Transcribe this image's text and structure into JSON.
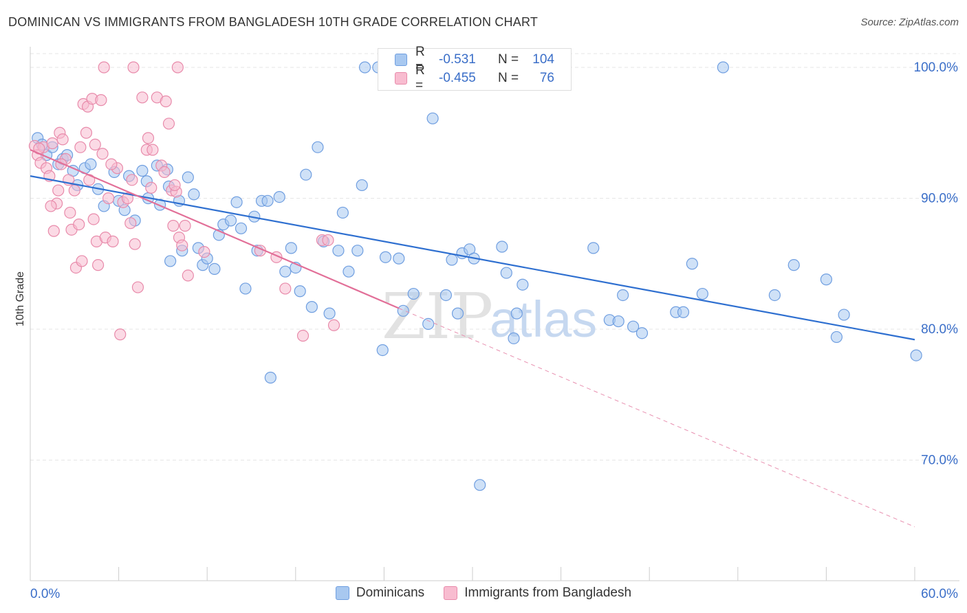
{
  "header": {
    "title": "DOMINICAN VS IMMIGRANTS FROM BANGLADESH 10TH GRADE CORRELATION CHART",
    "source": "Source: ZipAtlas.com"
  },
  "watermark": {
    "zip": "ZIP",
    "atlas": "atlas"
  },
  "legend_box": {
    "rows": [
      {
        "r_label": "R =",
        "r_value": "-0.531",
        "n_label": "N =",
        "n_value": "104",
        "color": "#a8c8f0",
        "border": "#6f9ee0"
      },
      {
        "r_label": "R =",
        "r_value": "-0.455",
        "n_label": "N =",
        "n_value": "76",
        "color": "#f8bcd0",
        "border": "#e88aaa"
      }
    ]
  },
  "bottom_legend": {
    "items": [
      {
        "label": "Dominicans",
        "color": "#a8c8f0",
        "border": "#6f9ee0"
      },
      {
        "label": "Immigrants from Bangladesh",
        "color": "#f8bcd0",
        "border": "#e88aaa"
      }
    ]
  },
  "chart_data": {
    "type": "scatter",
    "ylabel": "10th Grade",
    "xlim": [
      0,
      60
    ],
    "ylim": [
      61.5,
      102.5
    ],
    "x_tick_labels": [
      {
        "value": 0,
        "label": "0.0%"
      },
      {
        "value": 60,
        "label": "60.0%"
      }
    ],
    "y_tick_labels": [
      {
        "value": 100,
        "label": "100.0%"
      },
      {
        "value": 90,
        "label": "90.0%"
      },
      {
        "value": 80,
        "label": "80.0%"
      },
      {
        "value": 70,
        "label": "70.0%"
      }
    ],
    "grid": true,
    "colors": {
      "blue": "#2e6fd0",
      "pink": "#e26f98",
      "tick_text": "#3a6ec8"
    },
    "series": [
      {
        "name": "Dominicans",
        "fill": "#a8c8f0",
        "stroke": "#6f9ee0",
        "trend": {
          "x": [
            0,
            60
          ],
          "y": [
            91.7,
            79.2
          ],
          "style": "solid",
          "color": "#2e6fd0"
        },
        "points": [
          [
            0.5,
            94.6
          ],
          [
            0.8,
            94.1
          ],
          [
            1.1,
            93.3
          ],
          [
            1.5,
            93.9
          ],
          [
            1.9,
            92.6
          ],
          [
            2.2,
            93.0
          ],
          [
            2.5,
            93.3
          ],
          [
            2.9,
            92.1
          ],
          [
            3.2,
            91.0
          ],
          [
            3.7,
            92.3
          ],
          [
            4.1,
            92.6
          ],
          [
            4.6,
            90.7
          ],
          [
            5.0,
            89.4
          ],
          [
            5.7,
            92.0
          ],
          [
            6.0,
            89.8
          ],
          [
            6.4,
            89.1
          ],
          [
            6.7,
            91.7
          ],
          [
            7.1,
            88.3
          ],
          [
            7.6,
            92.1
          ],
          [
            7.9,
            91.3
          ],
          [
            8.0,
            90.0
          ],
          [
            8.6,
            92.5
          ],
          [
            8.8,
            89.5
          ],
          [
            9.3,
            92.2
          ],
          [
            9.4,
            90.9
          ],
          [
            9.5,
            85.2
          ],
          [
            10.1,
            89.8
          ],
          [
            10.3,
            86.0
          ],
          [
            10.7,
            91.6
          ],
          [
            11.1,
            90.3
          ],
          [
            11.4,
            86.2
          ],
          [
            11.7,
            84.9
          ],
          [
            12.0,
            85.4
          ],
          [
            12.5,
            84.6
          ],
          [
            12.8,
            87.2
          ],
          [
            13.1,
            88.0
          ],
          [
            13.6,
            88.3
          ],
          [
            14.0,
            89.7
          ],
          [
            14.3,
            87.7
          ],
          [
            14.6,
            83.1
          ],
          [
            15.2,
            88.6
          ],
          [
            15.4,
            86.0
          ],
          [
            15.7,
            89.8
          ],
          [
            16.1,
            89.8
          ],
          [
            16.3,
            76.3
          ],
          [
            16.9,
            90.1
          ],
          [
            17.3,
            84.4
          ],
          [
            17.7,
            86.2
          ],
          [
            18.0,
            84.7
          ],
          [
            18.3,
            82.9
          ],
          [
            18.7,
            91.8
          ],
          [
            19.1,
            81.7
          ],
          [
            19.5,
            93.9
          ],
          [
            19.9,
            86.7
          ],
          [
            20.3,
            81.2
          ],
          [
            20.9,
            86.0
          ],
          [
            21.2,
            88.9
          ],
          [
            21.6,
            84.4
          ],
          [
            22.2,
            86.0
          ],
          [
            22.5,
            91.0
          ],
          [
            22.7,
            100.0
          ],
          [
            23.6,
            100.0
          ],
          [
            23.9,
            78.4
          ],
          [
            24.1,
            85.5
          ],
          [
            25.0,
            85.4
          ],
          [
            25.3,
            81.4
          ],
          [
            26.0,
            82.7
          ],
          [
            27.0,
            80.4
          ],
          [
            27.3,
            96.1
          ],
          [
            28.2,
            82.6
          ],
          [
            28.6,
            85.3
          ],
          [
            29.0,
            81.2
          ],
          [
            29.3,
            85.8
          ],
          [
            29.8,
            86.1
          ],
          [
            30.1,
            85.4
          ],
          [
            30.5,
            68.1
          ],
          [
            31.0,
            100.0
          ],
          [
            32.0,
            86.3
          ],
          [
            32.3,
            84.3
          ],
          [
            32.8,
            79.3
          ],
          [
            33.0,
            81.2
          ],
          [
            33.4,
            83.4
          ],
          [
            38.2,
            86.2
          ],
          [
            39.3,
            80.7
          ],
          [
            39.9,
            80.6
          ],
          [
            40.2,
            82.6
          ],
          [
            40.9,
            80.2
          ],
          [
            41.5,
            79.7
          ],
          [
            43.8,
            81.3
          ],
          [
            44.3,
            81.3
          ],
          [
            44.9,
            85.0
          ],
          [
            45.6,
            82.7
          ],
          [
            50.5,
            82.6
          ],
          [
            51.8,
            84.9
          ],
          [
            54.0,
            83.8
          ],
          [
            54.7,
            79.4
          ],
          [
            55.2,
            81.1
          ],
          [
            60.1,
            78.0
          ],
          [
            47.0,
            100.0
          ]
        ]
      },
      {
        "name": "Immigrants from Bangladesh",
        "fill": "#f8bcd0",
        "stroke": "#e88aaa",
        "trend": {
          "x": [
            0,
            25
          ],
          "y": [
            93.7,
            81.6
          ],
          "style": "solid",
          "color": "#e26f98"
        },
        "trend_ext": {
          "x": [
            25,
            60
          ],
          "y": [
            81.6,
            64.9
          ],
          "style": "dashed",
          "color": "#e890b0"
        },
        "points": [
          [
            0.3,
            94.0
          ],
          [
            0.5,
            93.3
          ],
          [
            0.7,
            92.7
          ],
          [
            0.9,
            93.9
          ],
          [
            1.1,
            92.3
          ],
          [
            1.3,
            91.7
          ],
          [
            1.5,
            94.2
          ],
          [
            1.6,
            87.5
          ],
          [
            1.8,
            89.6
          ],
          [
            1.9,
            90.6
          ],
          [
            2.0,
            95.0
          ],
          [
            2.2,
            94.5
          ],
          [
            2.4,
            93.0
          ],
          [
            2.6,
            91.4
          ],
          [
            2.8,
            87.6
          ],
          [
            3.0,
            90.6
          ],
          [
            3.1,
            84.7
          ],
          [
            3.3,
            88.0
          ],
          [
            3.5,
            85.2
          ],
          [
            3.6,
            97.2
          ],
          [
            3.8,
            95.0
          ],
          [
            3.9,
            97.0
          ],
          [
            4.0,
            91.4
          ],
          [
            4.2,
            97.6
          ],
          [
            4.4,
            94.1
          ],
          [
            4.5,
            86.7
          ],
          [
            4.6,
            84.9
          ],
          [
            4.8,
            97.5
          ],
          [
            4.9,
            93.4
          ],
          [
            5.1,
            87.0
          ],
          [
            5.3,
            90.0
          ],
          [
            5.6,
            86.7
          ],
          [
            5.9,
            92.3
          ],
          [
            6.1,
            79.6
          ],
          [
            6.3,
            89.7
          ],
          [
            6.6,
            90.0
          ],
          [
            6.9,
            91.4
          ],
          [
            7.1,
            86.5
          ],
          [
            7.3,
            83.2
          ],
          [
            7.6,
            97.7
          ],
          [
            7.9,
            93.7
          ],
          [
            8.0,
            94.6
          ],
          [
            8.3,
            93.7
          ],
          [
            8.6,
            97.7
          ],
          [
            8.9,
            92.5
          ],
          [
            9.1,
            92.0
          ],
          [
            9.2,
            97.4
          ],
          [
            9.4,
            95.7
          ],
          [
            9.6,
            90.6
          ],
          [
            9.7,
            87.9
          ],
          [
            9.9,
            90.5
          ],
          [
            10.1,
            87.0
          ],
          [
            10.3,
            86.4
          ],
          [
            10.5,
            87.9
          ],
          [
            10.7,
            84.1
          ],
          [
            5.0,
            100.0
          ],
          [
            7.0,
            100.0
          ],
          [
            10.0,
            100.0
          ],
          [
            11.8,
            85.9
          ],
          [
            15.6,
            86.0
          ],
          [
            16.7,
            85.5
          ],
          [
            17.3,
            83.1
          ],
          [
            18.5,
            79.5
          ],
          [
            19.8,
            86.8
          ],
          [
            20.2,
            86.8
          ],
          [
            20.6,
            80.3
          ],
          [
            1.4,
            89.4
          ],
          [
            2.1,
            92.6
          ],
          [
            2.7,
            88.9
          ],
          [
            3.4,
            93.9
          ],
          [
            4.3,
            88.4
          ],
          [
            5.5,
            92.6
          ],
          [
            6.8,
            88.1
          ],
          [
            8.2,
            90.8
          ],
          [
            9.8,
            91.0
          ],
          [
            0.6,
            93.8
          ]
        ]
      }
    ]
  }
}
